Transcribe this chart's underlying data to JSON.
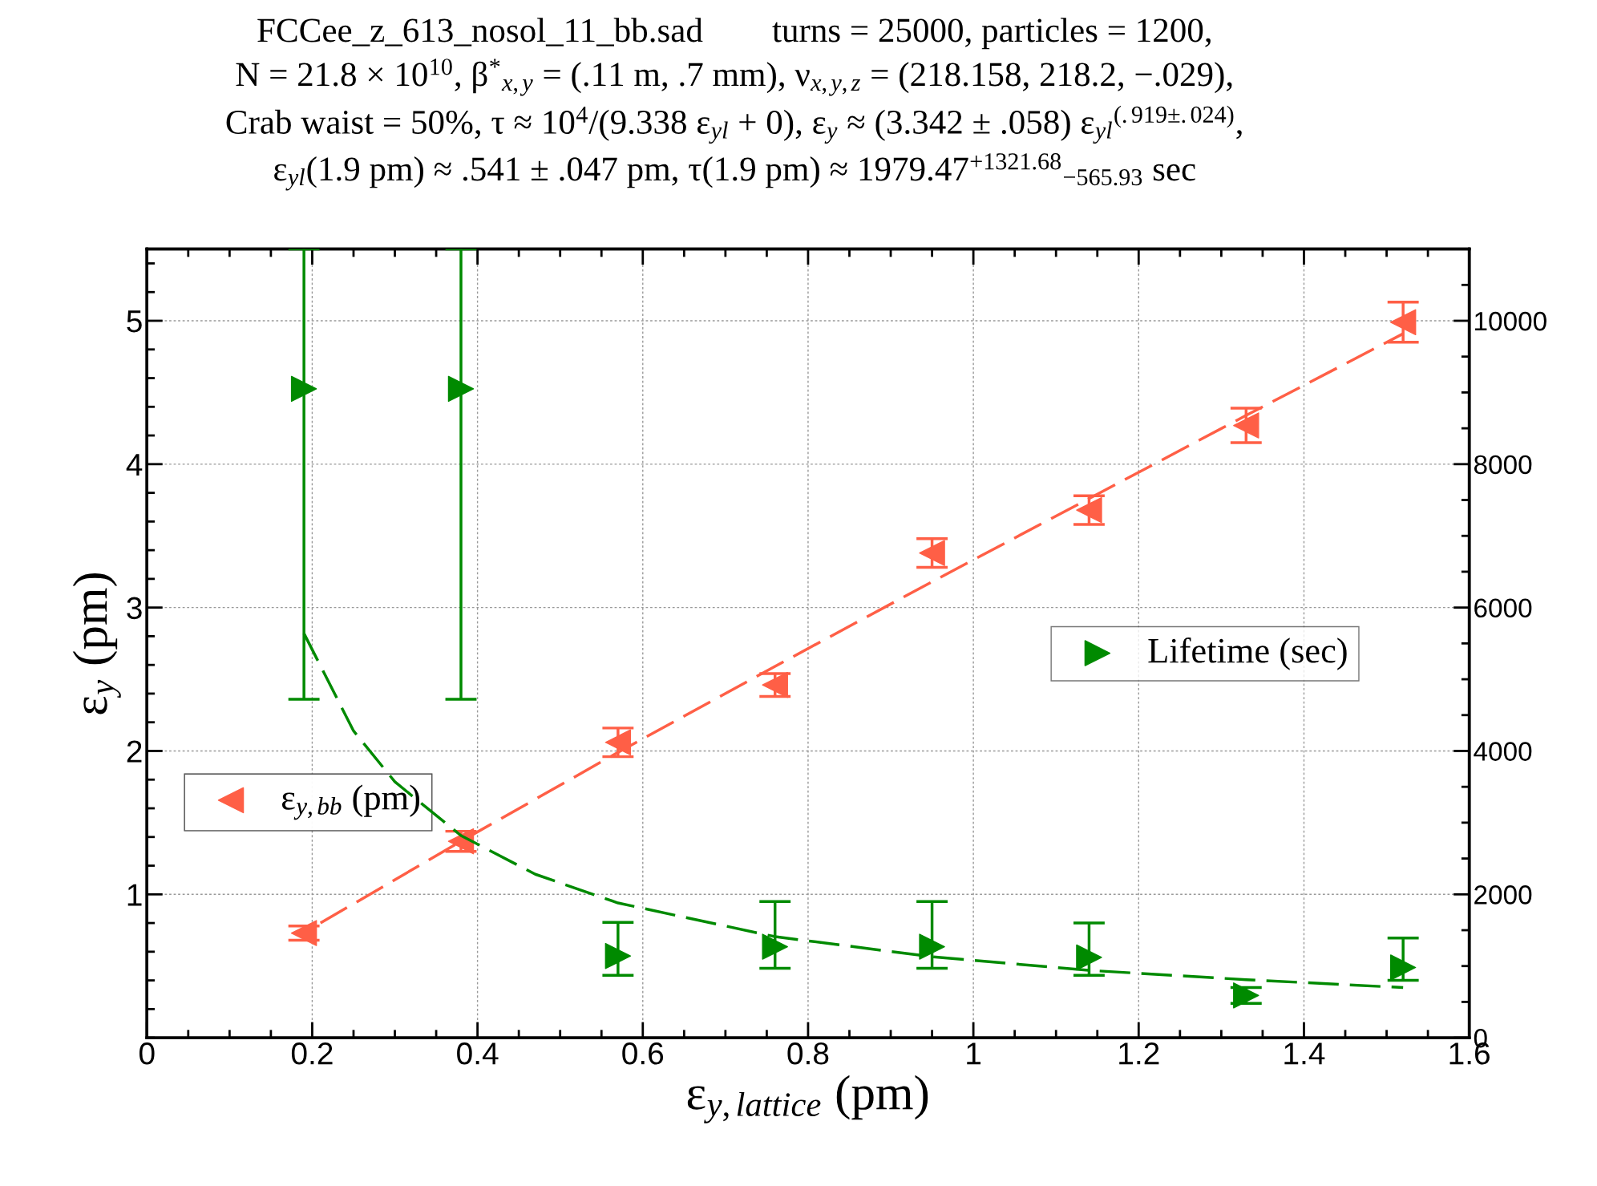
{
  "chart_data": {
    "type": "scatter",
    "title": "FCCee_z_613_nosol_11_bb.sad        turns = 25000, particles = 1200,\nN = 21.8 × 10$^{10}$, β$^{*}$$_{x,y}$ = (.11 m, .7 mm), ν$_{x,y,z}$ = (218.158, 218.2, −.029),\nCrab waist = 50%, τ ≈ 10$^{4}$/(9.338 ε$_{yl}$ + 0), ε$_{y}$ ≈ (3.342 ± .058) ε$_{yl}$$^{(.919±.024)}$,\nε$_{yl}$(1.9 pm) ≈ .541 ± .047 pm, τ(1.9 pm) ≈ 1979.47$^{+1321.68}$$_{−565.93}$ sec",
    "xlabel": "ε$_{y,lattice}$ (pm)",
    "ylabel": "ε$_{y}$ (pm)",
    "x": [
      0.19,
      0.38,
      0.57,
      0.76,
      0.95,
      1.14,
      1.33,
      1.52
    ],
    "series": [
      {
        "name": "ε$_{y,bb}$ (pm)",
        "color": "#ff5f46",
        "values": [
          0.73,
          1.37,
          2.06,
          2.46,
          3.38,
          3.68,
          4.27,
          4.99
        ],
        "errors": [
          0.05,
          0.07,
          0.1,
          0.08,
          0.1,
          0.1,
          0.12,
          0.14
        ]
      },
      {
        "name": "Lifetime (sec)",
        "color": "#008a00",
        "axis": "y2",
        "values": [
          9050,
          9050,
          1140,
          1270,
          1270,
          1120,
          590,
          980
        ],
        "errors": [
          [
            4720,
            11000
          ],
          [
            4720,
            11000
          ],
          [
            870,
            1610
          ],
          [
            970,
            1900
          ],
          [
            970,
            1900
          ],
          [
            870,
            1600
          ],
          [
            480,
            700
          ],
          [
            800,
            1390
          ]
        ]
      },
      {
        "color": "#ff5f46",
        "type": "line",
        "line_style": "dashed",
        "marker": "none",
        "x": [
          0.21,
          0.38,
          0.57,
          0.76,
          0.95,
          1.14,
          1.33,
          1.52
        ],
        "values": [
          0.8,
          1.37,
          1.99,
          2.59,
          3.18,
          3.76,
          4.34,
          4.91
        ]
      },
      {
        "color": "#008a00",
        "type": "line",
        "line_style": "dashed",
        "marker": "none",
        "axis": "y2",
        "x": [
          0.19,
          0.25,
          0.3,
          0.38,
          0.47,
          0.57,
          0.76,
          0.95,
          1.14,
          1.33,
          1.52
        ],
        "values": [
          5640,
          4280,
          3570,
          2820,
          2280,
          1880,
          1410,
          1130,
          940,
          810,
          700
        ]
      }
    ],
    "xlim": [
      0,
      1.6
    ],
    "xticks": [
      0,
      0.2,
      0.4,
      0.6,
      0.8,
      1,
      1.2,
      1.4,
      1.6
    ],
    "ylim": [
      0,
      5.5
    ],
    "yticks": [
      1,
      2,
      3,
      4,
      5
    ],
    "y2lim": [
      0,
      11000
    ],
    "y2ticks": [
      0,
      2000,
      4000,
      6000,
      8000,
      10000
    ],
    "grid": true,
    "legend": "center",
    "marker": "triangle"
  }
}
